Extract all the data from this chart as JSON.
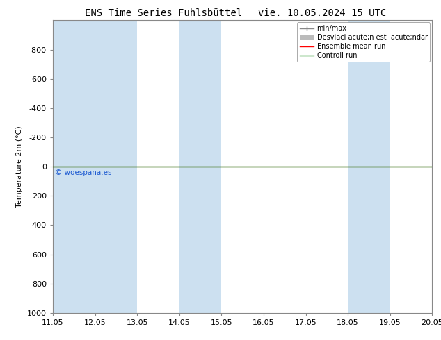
{
  "title_left": "ENS Time Series Fuhlsbüttel",
  "title_right": "vie. 10.05.2024 15 UTC",
  "ylabel": "Temperature 2m (°C)",
  "watermark": "© woespana.es",
  "xtick_labels": [
    "11.05",
    "12.05",
    "13.05",
    "14.05",
    "15.05",
    "16.05",
    "17.05",
    "18.05",
    "19.05",
    "20.05"
  ],
  "xtick_positions": [
    0,
    1,
    2,
    3,
    4,
    5,
    6,
    7,
    8,
    9
  ],
  "ylim_top": -1000,
  "ylim_bottom": 1000,
  "ytick_positions": [
    -800,
    -600,
    -400,
    -200,
    0,
    200,
    400,
    600,
    800,
    1000
  ],
  "ytick_labels": [
    "-800",
    "-600",
    "-400",
    "-200",
    "0",
    "200",
    "400",
    "600",
    "800",
    "1000"
  ],
  "shade_bands": [
    [
      0,
      2
    ],
    [
      3,
      4
    ],
    [
      7,
      8
    ],
    [
      9,
      10
    ]
  ],
  "shade_color": "#cce0f0",
  "ensemble_mean_color": "#ff0000",
  "control_run_color": "#008800",
  "minmax_line_color": "#888888",
  "std_fill_color": "#cccccc",
  "flat_line_y": 0,
  "legend_entries": [
    "min/max",
    "Desviaci acute;n est  acute;ndar",
    "Ensemble mean run",
    "Controll run"
  ],
  "legend_colors": [
    "#888888",
    "#bbbbbb",
    "#ff0000",
    "#008800"
  ],
  "bg_color": "#ffffff",
  "plot_bg_color": "#ffffff",
  "font_size": 8,
  "title_font_size": 10
}
